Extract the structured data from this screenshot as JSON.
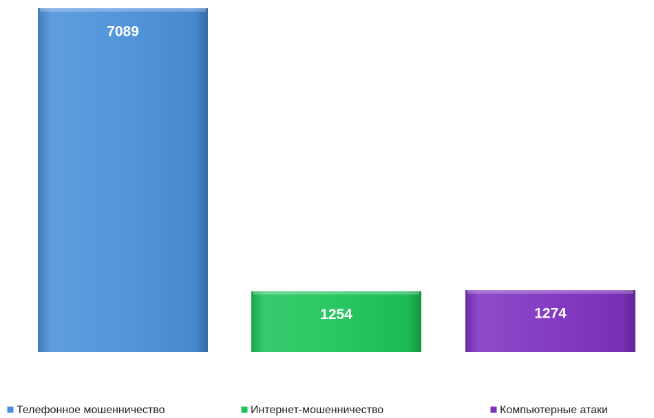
{
  "chart_data": {
    "type": "bar",
    "series": [
      {
        "name": "Телефонное мошенничество",
        "color": "#4a90d9",
        "values": [
          7089
        ]
      },
      {
        "name": "Интернет-мошенничество",
        "color": "#1ec45a",
        "values": [
          1254
        ]
      },
      {
        "name": "Компьютерные атаки",
        "color": "#7e32c0",
        "values": [
          1274
        ]
      }
    ],
    "legend": "bottom"
  }
}
